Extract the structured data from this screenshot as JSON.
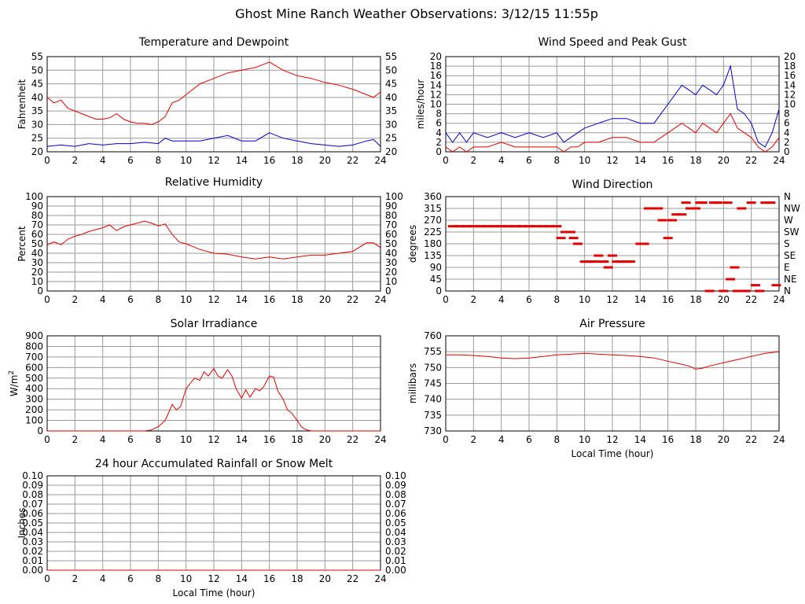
{
  "page": {
    "title": "Ghost Mine Ranch Weather Observations: 3/12/15 11:55p"
  },
  "chart_data": [
    {
      "id": "temp",
      "type": "line",
      "title": "Temperature and Dewpoint",
      "ylabel": "Fahrenheit",
      "xlabel": "",
      "xlim": [
        0,
        24
      ],
      "ylim": [
        20,
        55
      ],
      "xticks": [
        0,
        2,
        4,
        6,
        8,
        10,
        12,
        14,
        16,
        18,
        20,
        22,
        24
      ],
      "yticks": [
        20,
        25,
        30,
        35,
        40,
        45,
        50,
        55
      ],
      "ytick_labels": [
        "20",
        "25",
        "30",
        "35",
        "40",
        "45",
        "50",
        "55"
      ],
      "right_ytick_labels": [
        "20",
        "25",
        "30",
        "35",
        "40",
        "45",
        "50",
        "55"
      ],
      "grid": true,
      "series": [
        {
          "color": "#e00000",
          "x": [
            0,
            0.5,
            1,
            1.5,
            2,
            2.5,
            3,
            3.5,
            4,
            4.5,
            5,
            5.5,
            6,
            6.5,
            7,
            7.5,
            8,
            8.5,
            9,
            9.5,
            10,
            11,
            12,
            13,
            14,
            15,
            16,
            16.5,
            17,
            18,
            19,
            20,
            21,
            22,
            23,
            23.5,
            24
          ],
          "y": [
            40,
            38,
            39,
            36,
            35,
            34,
            33,
            32,
            32,
            32.5,
            34,
            32,
            31,
            30.5,
            30.5,
            30,
            31,
            33,
            38,
            39,
            41,
            45,
            47,
            49,
            50,
            51,
            53,
            51.5,
            50,
            48,
            47,
            45.5,
            44.5,
            43,
            41,
            40,
            42
          ]
        },
        {
          "color": "#0000cc",
          "x": [
            0,
            1,
            2,
            3,
            4,
            5,
            6,
            7,
            8,
            8.5,
            9,
            10,
            11,
            12,
            13,
            14,
            15,
            16,
            16.5,
            17,
            18,
            19,
            20,
            21,
            22,
            23,
            23.5,
            24
          ],
          "y": [
            22,
            22.5,
            22,
            23,
            22.5,
            23,
            23,
            23.5,
            23,
            25,
            24,
            24,
            24,
            25,
            26,
            24,
            24,
            27,
            26,
            25,
            24,
            23,
            22.5,
            22,
            22.5,
            24,
            24.5,
            22
          ]
        }
      ]
    },
    {
      "id": "wind",
      "type": "line",
      "title": "Wind Speed and Peak Gust",
      "ylabel": "miles/hour",
      "xlabel": "",
      "xlim": [
        0,
        24
      ],
      "ylim": [
        0,
        20
      ],
      "xticks": [
        0,
        2,
        4,
        6,
        8,
        10,
        12,
        14,
        16,
        18,
        20,
        22,
        24
      ],
      "yticks": [
        0,
        2,
        4,
        6,
        8,
        10,
        12,
        14,
        16,
        18,
        20
      ],
      "ytick_labels": [
        "0",
        "2",
        "4",
        "6",
        "8",
        "10",
        "12",
        "14",
        "16",
        "18",
        "20"
      ],
      "right_ytick_labels": [
        "0",
        "2",
        "4",
        "6",
        "8",
        "10",
        "12",
        "14",
        "16",
        "18",
        "20"
      ],
      "grid": true,
      "series": [
        {
          "color": "#0000cc",
          "x": [
            0,
            0.5,
            1,
            1.5,
            2,
            3,
            4,
            5,
            6,
            7,
            8,
            8.5,
            9,
            9.5,
            10,
            11,
            12,
            13,
            14,
            15,
            15.5,
            16,
            16.5,
            17,
            17.5,
            18,
            18.5,
            19,
            19.5,
            20,
            20.5,
            21,
            21.5,
            22,
            22.5,
            23,
            23.5,
            24
          ],
          "y": [
            4,
            2,
            4,
            2,
            4,
            3,
            4,
            3,
            4,
            3,
            4,
            2,
            3,
            4,
            5,
            6,
            7,
            7,
            6,
            6,
            8,
            10,
            12,
            14,
            13,
            12,
            14,
            13,
            12,
            14,
            18,
            9,
            8,
            6,
            2,
            1,
            4,
            9
          ]
        },
        {
          "color": "#e00000",
          "x": [
            0,
            0.5,
            1,
            1.5,
            2,
            3,
            4,
            5,
            6,
            7,
            8,
            8.5,
            9,
            9.5,
            10,
            11,
            12,
            13,
            14,
            15,
            15.5,
            16,
            16.5,
            17,
            17.5,
            18,
            18.5,
            19,
            19.5,
            20,
            20.5,
            21,
            21.5,
            22,
            22.5,
            23,
            23.5,
            24
          ],
          "y": [
            1,
            0,
            1,
            0,
            1,
            1,
            2,
            1,
            1,
            1,
            1,
            0,
            1,
            1,
            2,
            2,
            3,
            3,
            2,
            2,
            3,
            4,
            5,
            6,
            5,
            4,
            6,
            5,
            4,
            6,
            8,
            5,
            4,
            3,
            1,
            0,
            1,
            3
          ]
        }
      ]
    },
    {
      "id": "rh",
      "type": "line",
      "title": "Relative Humidity",
      "ylabel": "Percent",
      "xlabel": "",
      "xlim": [
        0,
        24
      ],
      "ylim": [
        0,
        100
      ],
      "xticks": [
        0,
        2,
        4,
        6,
        8,
        10,
        12,
        14,
        16,
        18,
        20,
        22,
        24
      ],
      "yticks": [
        0,
        10,
        20,
        30,
        40,
        50,
        60,
        70,
        80,
        90,
        100
      ],
      "ytick_labels": [
        "0",
        "10",
        "20",
        "30",
        "40",
        "50",
        "60",
        "70",
        "80",
        "90",
        "100"
      ],
      "right_ytick_labels": [
        "0",
        "10",
        "20",
        "30",
        "40",
        "50",
        "60",
        "70",
        "80",
        "90",
        "100"
      ],
      "grid": true,
      "series": [
        {
          "color": "#e00000",
          "x": [
            0,
            0.5,
            1,
            1.5,
            2,
            2.5,
            3,
            3.5,
            4,
            4.5,
            5,
            5.5,
            6,
            6.5,
            7,
            7.5,
            8,
            8.5,
            9,
            9.5,
            10,
            11,
            12,
            13,
            14,
            15,
            16,
            17,
            18,
            19,
            20,
            21,
            22,
            23,
            23.5,
            24
          ],
          "y": [
            49,
            52,
            49,
            55,
            58,
            60,
            63,
            65,
            67,
            70,
            64,
            68,
            70,
            72,
            74,
            72,
            69,
            71,
            60,
            52,
            50,
            44,
            40,
            39,
            36,
            34,
            36,
            34,
            36,
            38,
            38,
            40,
            42,
            51,
            51,
            46
          ]
        }
      ]
    },
    {
      "id": "dir",
      "type": "scatter",
      "title": "Wind Direction",
      "ylabel": "degrees",
      "xlabel": "",
      "xlim": [
        0,
        24
      ],
      "ylim": [
        0,
        360
      ],
      "xticks": [
        0,
        2,
        4,
        6,
        8,
        10,
        12,
        14,
        16,
        18,
        20,
        22,
        24
      ],
      "yticks": [
        0,
        45,
        90,
        135,
        180,
        225,
        270,
        315,
        360
      ],
      "ytick_labels": [
        "0",
        "45",
        "90",
        "135",
        "180",
        "225",
        "270",
        "315",
        "360"
      ],
      "right_ytick_labels": [
        "N",
        "NE",
        "E",
        "SE",
        "S",
        "SW",
        "W",
        "NW",
        "N"
      ],
      "grid": true,
      "series": [
        {
          "color": "#e00000",
          "x": [
            0.5,
            1,
            1.5,
            2,
            2.5,
            3,
            3.5,
            4,
            4.5,
            5,
            5.5,
            6,
            6.5,
            7,
            7.5,
            8,
            8.3,
            8.6,
            9,
            9.2,
            9.5,
            10,
            10.3,
            10.6,
            11,
            11.2,
            11.4,
            11.7,
            12,
            12.3,
            12.6,
            13,
            13.3,
            14,
            14.3,
            14.6,
            15,
            15.3,
            15.6,
            16,
            16.3,
            16.6,
            17,
            17.3,
            17.6,
            18,
            18.3,
            18.5,
            19,
            19.3,
            19.6,
            20,
            20.3,
            20.5,
            20.8,
            21,
            21.3,
            21.6,
            22,
            22.3,
            22.6,
            23,
            23.4,
            23.8
          ],
          "y": [
            247,
            247,
            247,
            247,
            247,
            247,
            247,
            247,
            247,
            247,
            247,
            247,
            247,
            247,
            247,
            247,
            202,
            225,
            225,
            202,
            180,
            112,
            112,
            112,
            135,
            112,
            112,
            90,
            135,
            112,
            112,
            112,
            112,
            180,
            180,
            315,
            315,
            315,
            270,
            202,
            270,
            292,
            292,
            337,
            315,
            315,
            337,
            337,
            0,
            337,
            337,
            0,
            337,
            45,
            90,
            0,
            315,
            0,
            337,
            22,
            0,
            337,
            337,
            22
          ]
        }
      ]
    },
    {
      "id": "solar",
      "type": "line",
      "title": "Solar Irradiance",
      "ylabel": "W/m2",
      "xlabel": "",
      "xlim": [
        0,
        24
      ],
      "ylim": [
        0,
        900
      ],
      "xticks": [
        0,
        2,
        4,
        6,
        8,
        10,
        12,
        14,
        16,
        18,
        20,
        22,
        24
      ],
      "yticks": [
        0,
        100,
        200,
        300,
        400,
        500,
        600,
        700,
        800,
        900
      ],
      "ytick_labels": [
        "0",
        "100",
        "200",
        "300",
        "400",
        "500",
        "600",
        "700",
        "800",
        "900"
      ],
      "right_ytick_labels": [],
      "grid": true,
      "series": [
        {
          "color": "#e00000",
          "x": [
            0,
            2,
            4,
            6,
            7,
            7.5,
            8,
            8.5,
            9,
            9.3,
            9.6,
            10,
            10.3,
            10.6,
            11,
            11.3,
            11.6,
            12,
            12.3,
            12.6,
            13,
            13.3,
            13.6,
            14,
            14.3,
            14.6,
            15,
            15.3,
            15.6,
            16,
            16.3,
            16.6,
            17,
            17.3,
            17.6,
            18,
            18.3,
            18.6,
            19,
            19.5,
            20,
            22,
            24
          ],
          "y": [
            0,
            0,
            0,
            0,
            0,
            10,
            40,
            100,
            250,
            200,
            230,
            400,
            450,
            500,
            480,
            560,
            520,
            590,
            520,
            500,
            580,
            520,
            400,
            310,
            390,
            320,
            400,
            380,
            420,
            520,
            510,
            380,
            300,
            200,
            170,
            100,
            40,
            15,
            0,
            0,
            0,
            0,
            0
          ]
        }
      ]
    },
    {
      "id": "pres",
      "type": "line",
      "title": "Air Pressure",
      "ylabel": "millibars",
      "xlabel": "Local Time (hour)",
      "xlim": [
        0,
        24
      ],
      "ylim": [
        730,
        760
      ],
      "xticks": [
        0,
        2,
        4,
        6,
        8,
        10,
        12,
        14,
        16,
        18,
        20,
        22,
        24
      ],
      "yticks": [
        730,
        735,
        740,
        745,
        750,
        755,
        760
      ],
      "ytick_labels": [
        "730",
        "735",
        "740",
        "745",
        "750",
        "755",
        "760"
      ],
      "right_ytick_labels": [],
      "grid": true,
      "series": [
        {
          "color": "#e00000",
          "x": [
            0,
            1,
            2,
            3,
            4,
            5,
            6,
            7,
            8,
            9,
            10,
            11,
            12,
            13,
            14,
            15,
            16,
            17,
            17.5,
            18,
            18.5,
            19,
            20,
            21,
            22,
            23,
            24
          ],
          "y": [
            754,
            754,
            753.8,
            753.5,
            753,
            752.8,
            753,
            753.5,
            754,
            754.2,
            754.5,
            754.2,
            754,
            753.8,
            753.5,
            753,
            752,
            751,
            750.5,
            749.5,
            749.8,
            750.5,
            751.5,
            752.5,
            753.5,
            754.5,
            755
          ]
        }
      ]
    },
    {
      "id": "rain",
      "type": "line",
      "title": "24 hour Accumulated Rainfall or Snow Melt",
      "ylabel": "Inches",
      "xlabel": "Local Time (hour)",
      "xlim": [
        0,
        24
      ],
      "ylim": [
        0,
        0.1
      ],
      "xticks": [
        0,
        2,
        4,
        6,
        8,
        10,
        12,
        14,
        16,
        18,
        20,
        22,
        24
      ],
      "yticks": [
        0,
        0.01,
        0.02,
        0.03,
        0.04,
        0.05,
        0.06,
        0.07,
        0.08,
        0.09,
        0.1
      ],
      "ytick_labels": [
        "0.00",
        "0.01",
        "0.02",
        "0.03",
        "0.04",
        "0.05",
        "0.06",
        "0.07",
        "0.08",
        "0.09",
        "0.10"
      ],
      "right_ytick_labels": [
        "0.00",
        "0.01",
        "0.02",
        "0.03",
        "0.04",
        "0.05",
        "0.06",
        "0.07",
        "0.08",
        "0.09",
        "0.10"
      ],
      "grid": true,
      "series": [
        {
          "color": "#e00000",
          "x": [
            0,
            24
          ],
          "y": [
            0,
            0
          ]
        }
      ]
    }
  ]
}
